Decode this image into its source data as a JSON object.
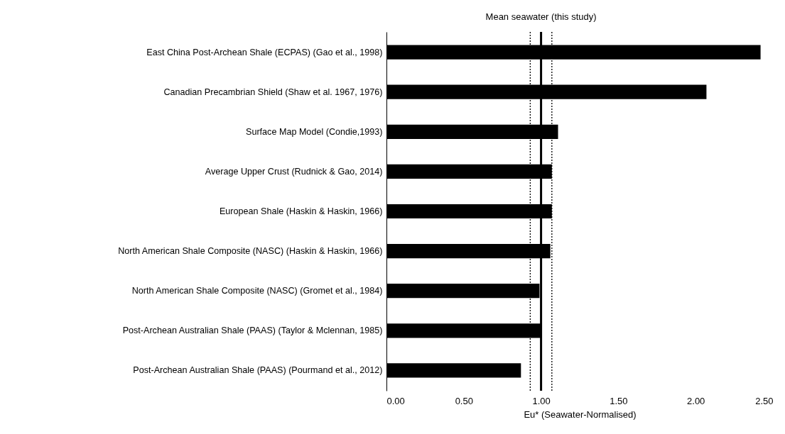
{
  "chart_data": {
    "type": "bar",
    "orientation": "horizontal",
    "xlabel": "Eu* (Seawater-Normalised)",
    "categories": [
      "East China Post-Archean Shale  (ECPAS) (Gao et al., 1998)",
      "Canadian Precambrian Shield (Shaw et al. 1967, 1976)",
      "Surface Map Model (Condie,1993)",
      "Average Upper Crust (Rudnick & Gao, 2014)",
      "European Shale (Haskin & Haskin, 1966)",
      "North American Shale Composite (NASC) (Haskin & Haskin, 1966)",
      "North American Shale Composite (NASC) (Gromet et al., 1984)",
      "Post-Archean Australian Shale (PAAS) (Taylor & Mclennan, 1985)",
      "Post-Archean Australian Shale (PAAS) (Pourmand et al., 2012)"
    ],
    "values": [
      2.42,
      2.07,
      1.11,
      1.07,
      1.07,
      1.06,
      0.99,
      1.0,
      0.87
    ],
    "color": "#000000",
    "xlim": [
      0,
      2.5
    ],
    "xticks": [
      {
        "value": 0,
        "label": "0.00"
      },
      {
        "value": 0.5,
        "label": "0.50"
      },
      {
        "value": 1,
        "label": "1.00"
      },
      {
        "value": 1.5,
        "label": "1.50"
      },
      {
        "value": 2,
        "label": "2.00"
      },
      {
        "value": 2.5,
        "label": "2.50"
      }
    ],
    "ref_lines": [
      {
        "axis": "x",
        "value": 1.0,
        "label": "Mean seawater (this study)",
        "color": "#000000",
        "line_style": "solid"
      },
      {
        "axis": "x",
        "value": 0.93,
        "color": "#000000",
        "line_style": "dotted"
      },
      {
        "axis": "x",
        "value": 1.07,
        "color": "#000000",
        "line_style": "dotted"
      }
    ]
  }
}
